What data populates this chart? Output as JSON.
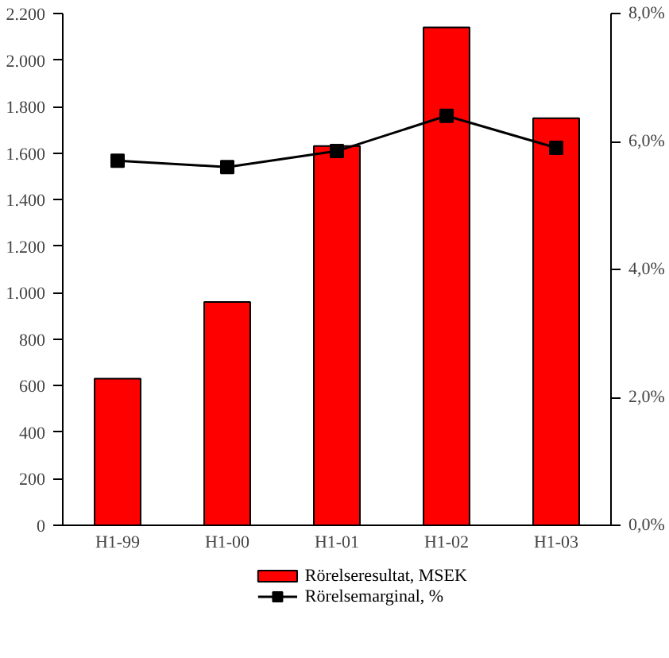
{
  "chart_data": {
    "type": "bar",
    "categories": [
      "H1-99",
      "H1-00",
      "H1-01",
      "H1-02",
      "H1-03"
    ],
    "series": [
      {
        "name": "Rörelseresultat, MSEK",
        "color": "#ff0000",
        "values": [
          630,
          960,
          1630,
          2140,
          1750
        ]
      },
      {
        "name": "Rörelsemarginal, %",
        "type": "line",
        "axis": "y2",
        "color": "#000000",
        "marker": "square",
        "values": [
          5.7,
          5.6,
          5.85,
          6.4,
          5.9
        ]
      }
    ],
    "ylim": [
      0,
      2200
    ],
    "yticks": [
      0,
      200,
      400,
      600,
      800,
      {
        "value": 1000,
        "label": "1.000"
      },
      {
        "value": 1200,
        "label": "1.200"
      },
      {
        "value": 1400,
        "label": "1.400"
      },
      {
        "value": 1600,
        "label": "1.600"
      },
      {
        "value": 1800,
        "label": "1.800"
      },
      {
        "value": 2000,
        "label": "2.000"
      },
      {
        "value": 2200,
        "label": "2.200"
      }
    ],
    "y2lim": [
      0,
      8
    ],
    "y2ticks": [
      {
        "value": 0,
        "label": "0,0%"
      },
      {
        "value": 2,
        "label": "2,0%"
      },
      {
        "value": 4,
        "label": "4,0%"
      },
      {
        "value": 6,
        "label": "6,0%"
      },
      {
        "value": 8,
        "label": "8,0%"
      }
    ],
    "grid": false,
    "legend": "bottom"
  }
}
